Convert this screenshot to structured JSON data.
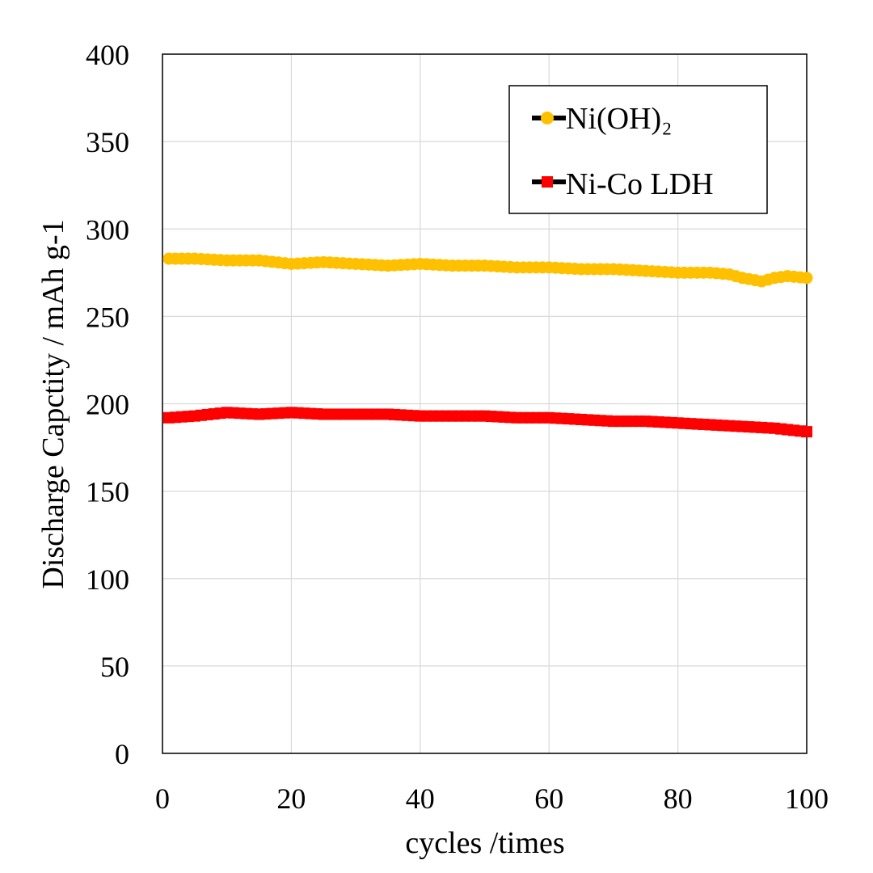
{
  "chart_data": {
    "type": "line",
    "xlabel": "cycles /times",
    "ylabel": "Discharge Capctity / mAh g-1",
    "xlim": [
      0,
      100
    ],
    "ylim": [
      0,
      400
    ],
    "xticks": [
      0,
      20,
      40,
      60,
      80,
      100
    ],
    "yticks": [
      0,
      50,
      100,
      150,
      200,
      250,
      300,
      350,
      400
    ],
    "xtick_labels": [
      "0",
      "20",
      "40",
      "60",
      "80",
      "100"
    ],
    "ytick_labels": [
      "0",
      "50",
      "100",
      "150",
      "200",
      "250",
      "300",
      "350",
      "400"
    ],
    "grid": true,
    "legend_position": "top-right",
    "series": [
      {
        "name": "Ni(OH)₂",
        "color": "#FFC000",
        "marker": "circle",
        "x": [
          1,
          5,
          10,
          15,
          20,
          25,
          30,
          35,
          40,
          45,
          50,
          55,
          60,
          65,
          70,
          75,
          80,
          85,
          88,
          90,
          93,
          95,
          97,
          100
        ],
        "y": [
          283,
          283,
          282,
          282,
          280,
          281,
          280,
          279,
          280,
          279,
          279,
          278,
          278,
          277,
          277,
          276,
          275,
          275,
          274,
          272,
          270,
          272,
          273,
          272
        ]
      },
      {
        "name": "Ni-Co LDH",
        "color": "#FF0000",
        "marker": "square",
        "x": [
          1,
          5,
          10,
          15,
          20,
          25,
          30,
          35,
          40,
          45,
          50,
          55,
          60,
          65,
          70,
          75,
          80,
          85,
          90,
          95,
          100
        ],
        "y": [
          192,
          193,
          195,
          194,
          195,
          194,
          194,
          194,
          193,
          193,
          193,
          192,
          192,
          191,
          190,
          190,
          189,
          188,
          187,
          186,
          184
        ]
      }
    ]
  }
}
